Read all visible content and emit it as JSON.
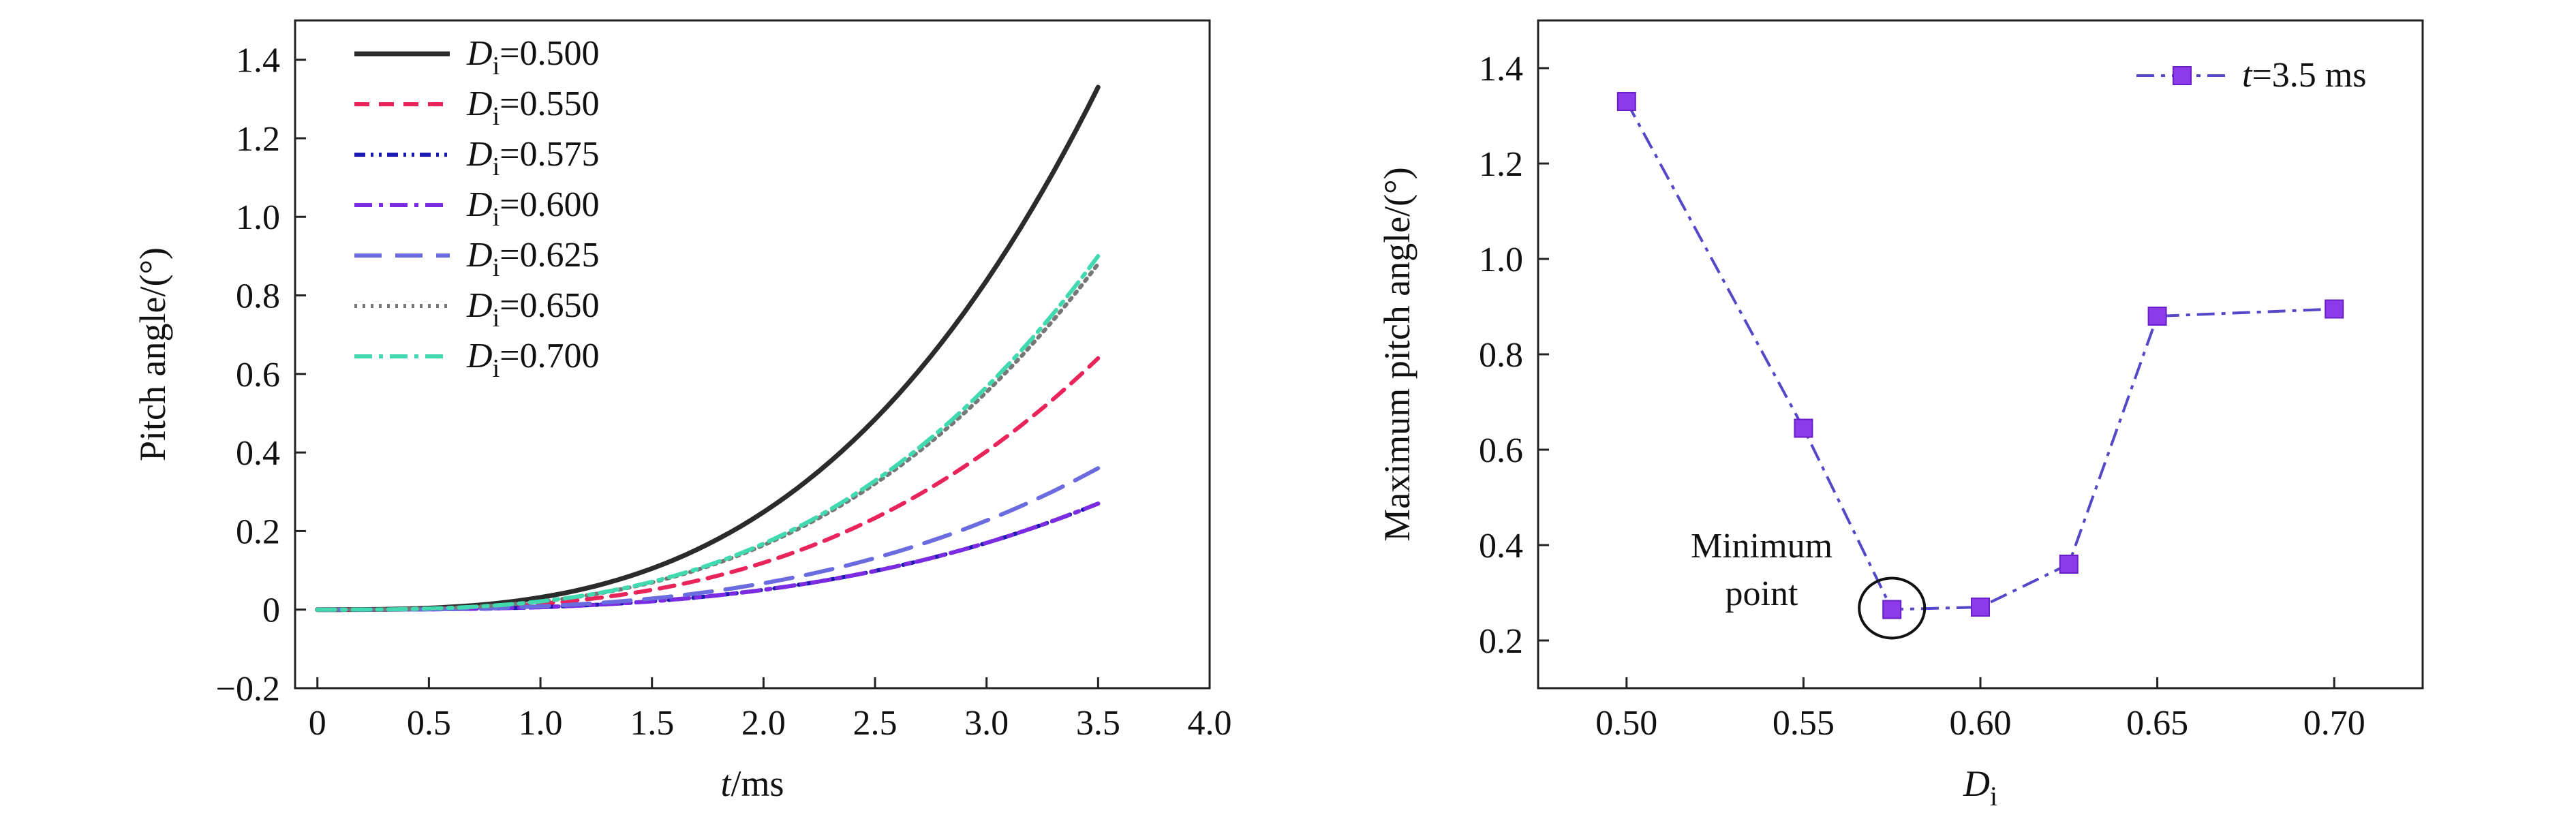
{
  "chart_data": [
    {
      "type": "line",
      "xlabel": {
        "italic": "t",
        "rest": "/ms"
      },
      "ylabel": "Pitch angle/(°)",
      "xlim": [
        -0.1,
        4.0
      ],
      "ylim": [
        -0.2,
        1.5
      ],
      "xticks": [
        "0",
        "0.5",
        "1.0",
        "1.5",
        "2.0",
        "2.5",
        "3.0",
        "3.5",
        "4.0"
      ],
      "xtick_values": [
        0,
        0.5,
        1.0,
        1.5,
        2.0,
        2.5,
        3.0,
        3.5,
        4.0
      ],
      "yticks": [
        "−0.2",
        "0",
        "0.2",
        "0.4",
        "0.6",
        "0.8",
        "1.0",
        "1.2",
        "1.4"
      ],
      "ytick_values": [
        -0.2,
        0,
        0.2,
        0.4,
        0.6,
        0.8,
        1.0,
        1.2,
        1.4
      ],
      "legend_position": "top-left",
      "series": [
        {
          "name": "=0.500",
          "legend_prefix": "D",
          "legend_sub": "i",
          "color": "#2b2b2b",
          "dash": "solid",
          "final_value": 1.33
        },
        {
          "name": "=0.550",
          "legend_prefix": "D",
          "legend_sub": "i",
          "color": "#e8245a",
          "dash": "dash",
          "final_value": 0.64
        },
        {
          "name": "=0.575",
          "legend_prefix": "D",
          "legend_sub": "i",
          "color": "#1a1ab0",
          "dash": "dashdotdot",
          "final_value": 0.27
        },
        {
          "name": "=0.600",
          "legend_prefix": "D",
          "legend_sub": "i",
          "color": "#7b2be0",
          "dash": "dashdot",
          "final_value": 0.27
        },
        {
          "name": "=0.625",
          "legend_prefix": "D",
          "legend_sub": "i",
          "color": "#6b6be0",
          "dash": "longdash",
          "final_value": 0.36
        },
        {
          "name": "=0.650",
          "legend_prefix": "D",
          "legend_sub": "i",
          "color": "#777777",
          "dash": "dot",
          "final_value": 0.88
        },
        {
          "name": "=0.700",
          "legend_prefix": "D",
          "legend_sub": "i",
          "color": "#40d9b0",
          "dash": "dashdot",
          "final_value": 0.9
        }
      ],
      "x_end": 3.5
    },
    {
      "type": "line",
      "xlabel": {
        "italic": "D",
        "sub": "i"
      },
      "ylabel": "Maximum pitch angle/(°)",
      "xlim": [
        0.475,
        0.725
      ],
      "ylim": [
        0.1,
        1.5
      ],
      "xticks": [
        "0.50",
        "0.55",
        "0.60",
        "0.65",
        "0.70"
      ],
      "xtick_values": [
        0.5,
        0.55,
        0.6,
        0.65,
        0.7
      ],
      "yticks": [
        "0.2",
        "0.4",
        "0.6",
        "0.8",
        "1.0",
        "1.2",
        "1.4"
      ],
      "ytick_values": [
        0.2,
        0.4,
        0.6,
        0.8,
        1.0,
        1.2,
        1.4
      ],
      "legend_position": "top-right",
      "series": [
        {
          "name": "=3.5 ms",
          "legend_prefix": "t",
          "color": "#8b3be8",
          "line_color": "#5548c8",
          "dash": "dashdot",
          "marker": "square",
          "x": [
            0.5,
            0.55,
            0.575,
            0.6,
            0.625,
            0.65,
            0.7
          ],
          "y": [
            1.33,
            0.645,
            0.265,
            0.27,
            0.36,
            0.88,
            0.895
          ]
        }
      ],
      "annotation": {
        "line1": "Minimum",
        "line2": "point",
        "x": 0.575,
        "y": 0.265
      }
    }
  ]
}
